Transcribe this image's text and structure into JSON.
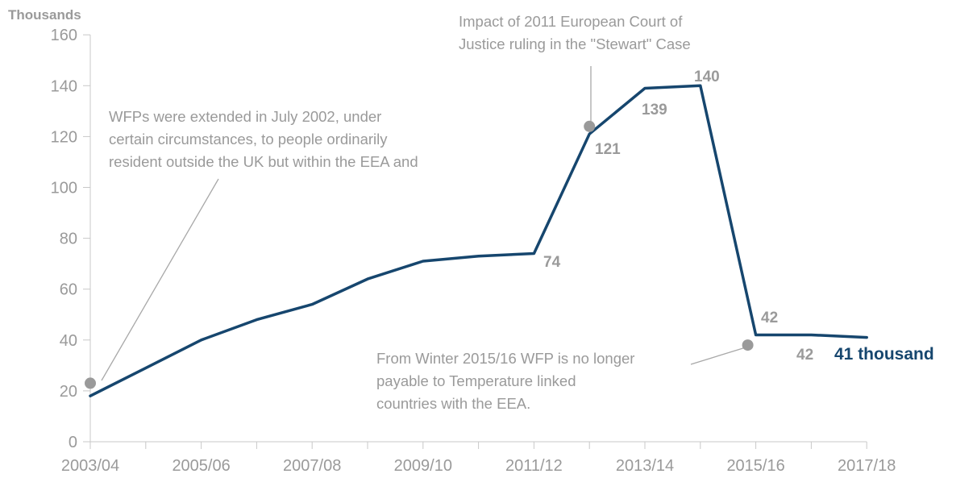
{
  "chart_data": {
    "type": "line",
    "unit_label": "Thousands",
    "x": [
      "2003/04",
      "2004/05",
      "2005/06",
      "2006/07",
      "2007/08",
      "2008/09",
      "2009/10",
      "2010/11",
      "2011/12",
      "2012/13",
      "2013/14",
      "2014/15",
      "2015/16",
      "2016/17",
      "2017/18"
    ],
    "x_tick_labels": [
      "2003/04",
      "2005/06",
      "2007/08",
      "2009/10",
      "2011/12",
      "2013/14",
      "2015/16",
      "2017/18"
    ],
    "y_tick_labels": [
      "0",
      "20",
      "40",
      "60",
      "80",
      "100",
      "120",
      "140",
      "160"
    ],
    "ylim": [
      0,
      160
    ],
    "grid": false,
    "series": [
      {
        "values": [
          18,
          29,
          40,
          48,
          54,
          64,
          71,
          73,
          74,
          121,
          139,
          140,
          42,
          42,
          41
        ],
        "color": "#16466e"
      }
    ],
    "data_labels": [
      "74",
      "121",
      "139",
      "140",
      "42",
      "42",
      "41 thousand"
    ],
    "annotations": [
      {
        "text": [
          "Impact of 2011 European Court of",
          "Justice ruling in the \"Stewart\" Case"
        ],
        "x": "2012/13",
        "y": 124
      },
      {
        "text": [
          "WFPs were extended in July 2002, under",
          "certain circumstances, to people ordinarily",
          "resident outside the UK but within the EEA and"
        ],
        "x": "2003/04",
        "y": 23
      },
      {
        "text": [
          "From Winter 2015/16 WFP is no longer",
          "payable to Temperature linked",
          "countries with the EEA."
        ],
        "x": "2015/16",
        "y": 38
      }
    ],
    "marker_color": "#9a9a9a"
  }
}
